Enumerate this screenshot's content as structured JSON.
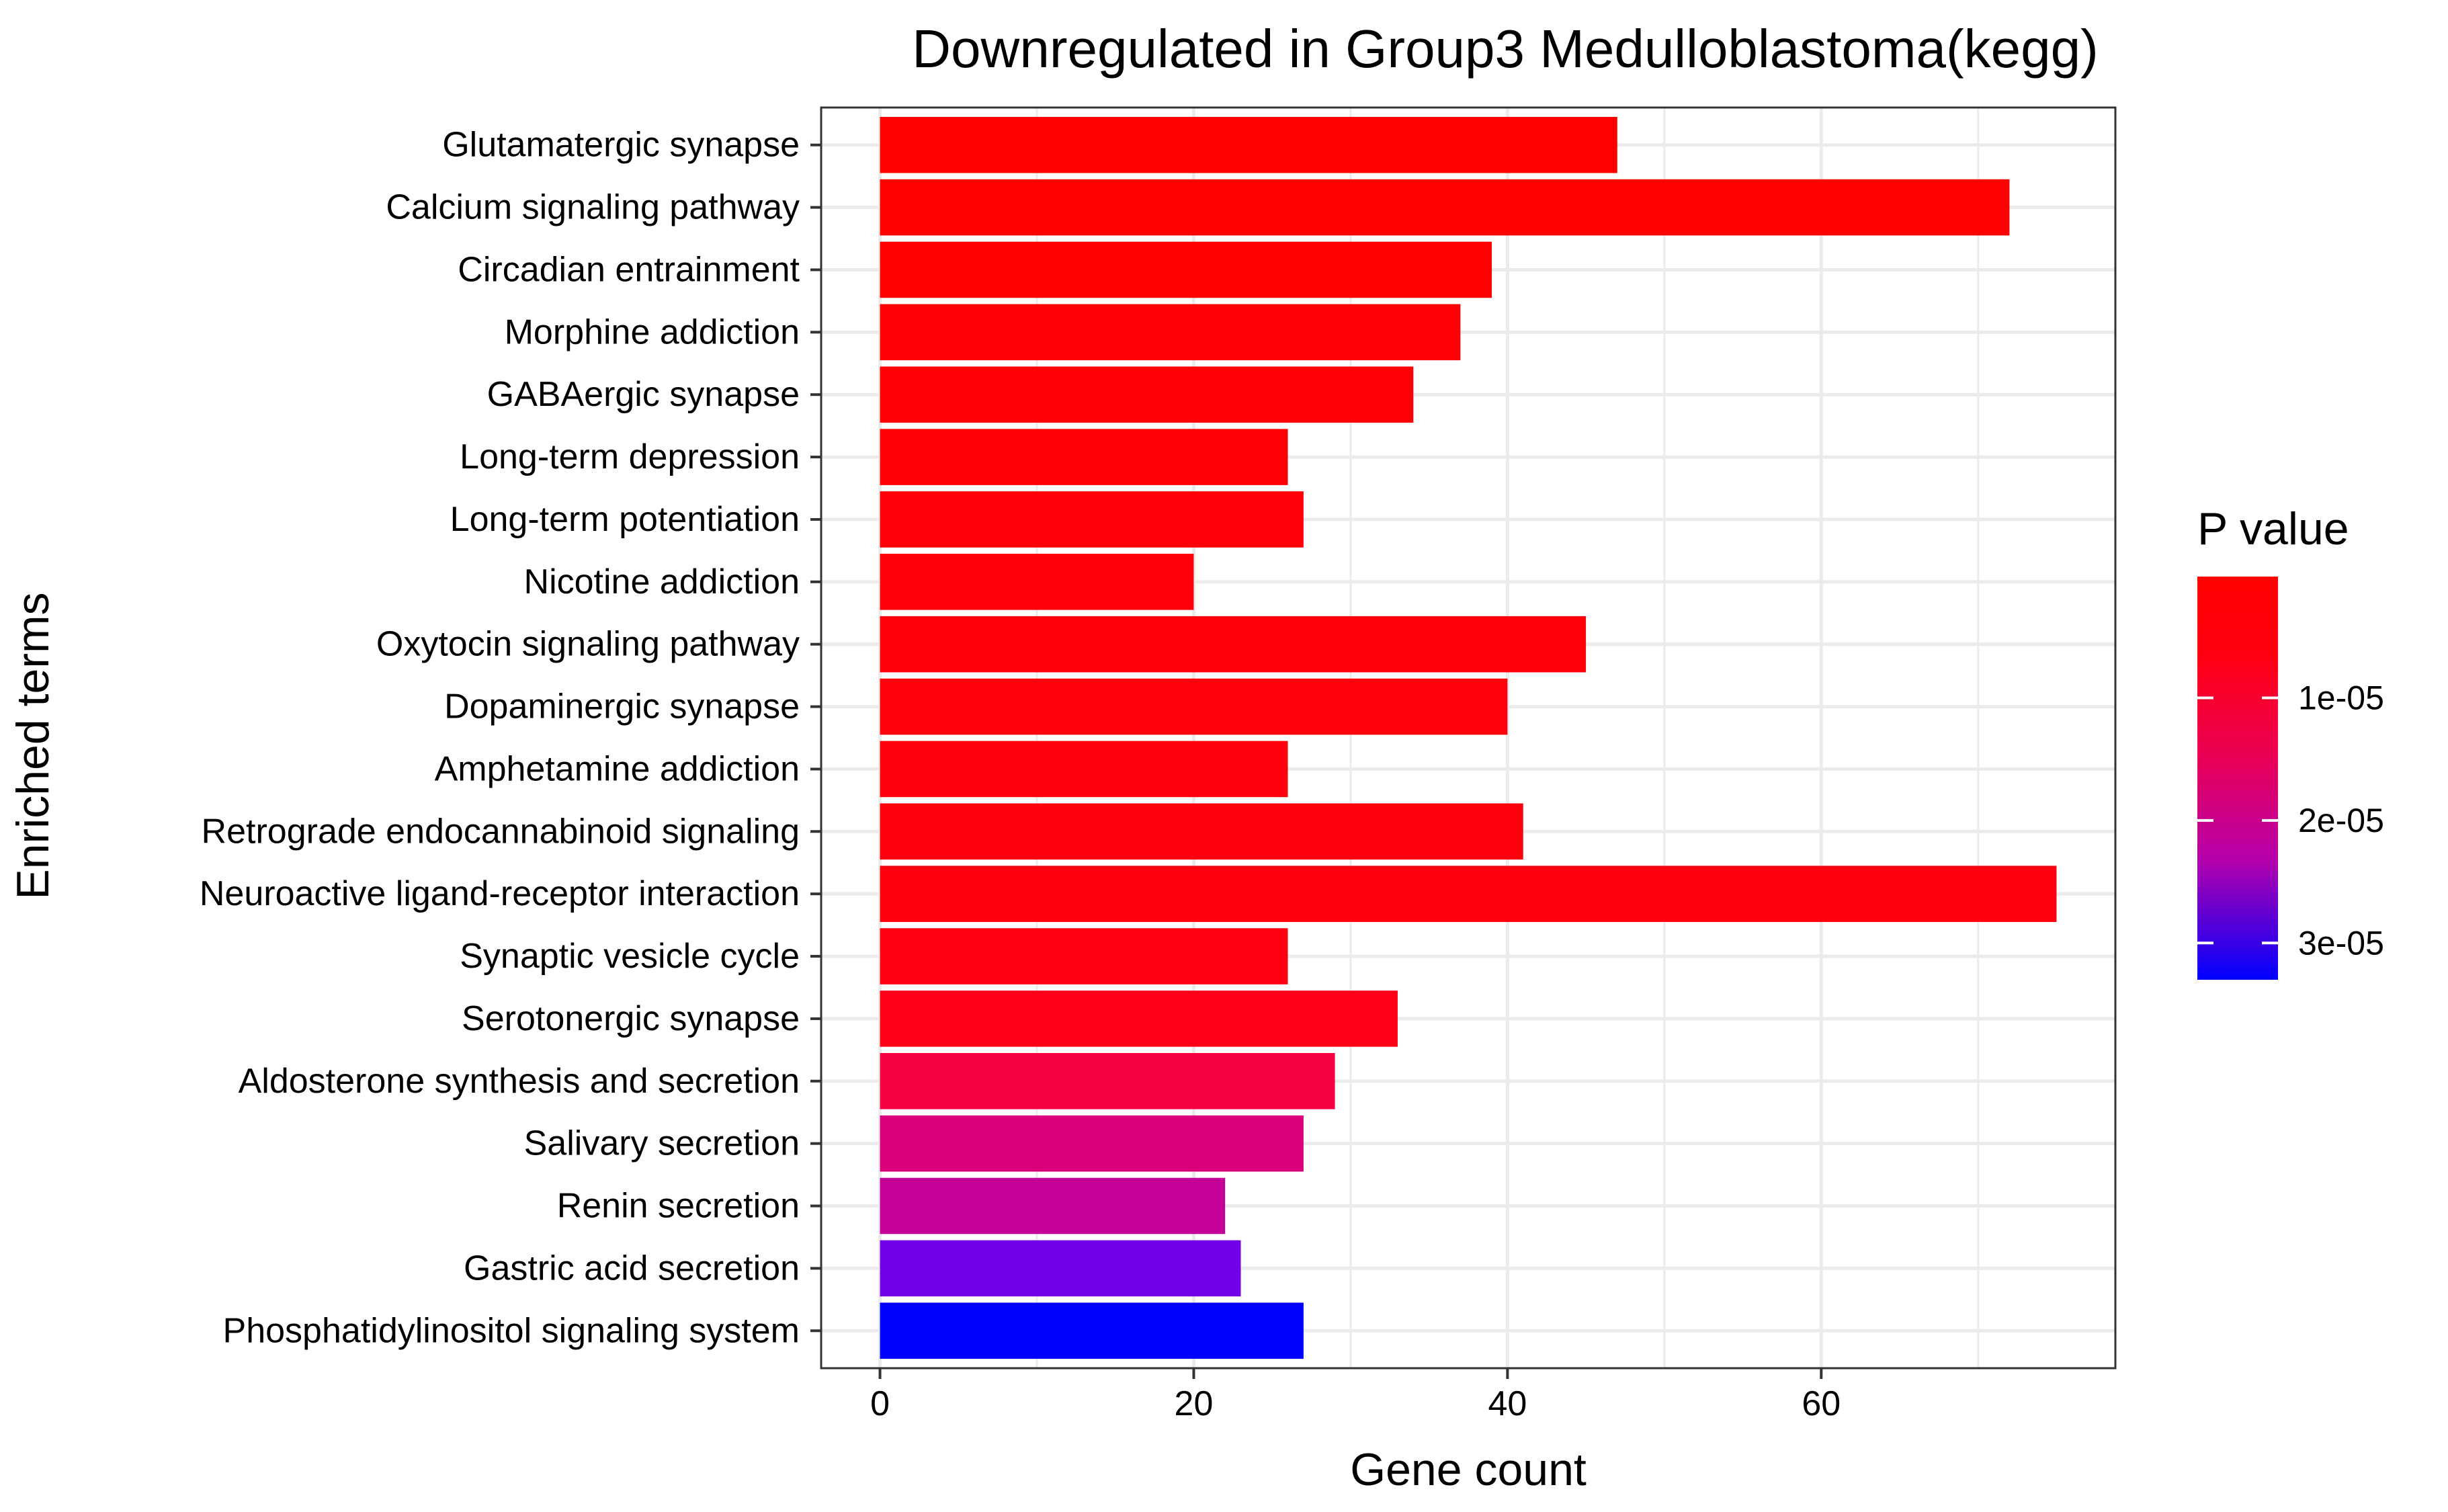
{
  "chart_data": {
    "type": "bar",
    "orientation": "horizontal",
    "title": "Downregulated in Group3 Medulloblastoma(kegg)",
    "xlabel": "Gene count",
    "ylabel": "Enriched terms",
    "xlim": [
      -3.75,
      78.75
    ],
    "xticks": [
      0,
      20,
      40,
      60
    ],
    "grid": true,
    "categories": [
      "Glutamatergic synapse",
      "Calcium signaling pathway",
      "Circadian entrainment",
      "Morphine addiction",
      "GABAergic synapse",
      "Long-term depression",
      "Long-term potentiation",
      "Nicotine addiction",
      "Oxytocin signaling pathway",
      "Dopaminergic synapse",
      "Amphetamine addiction",
      "Retrograde endocannabinoid signaling",
      "Neuroactive ligand-receptor interaction",
      "Synaptic vesicle cycle",
      "Serotonergic synapse",
      "Aldosterone synthesis and secretion",
      "Salivary secretion",
      "Renin secretion",
      "Gastric acid secretion",
      "Phosphatidylinositol signaling system"
    ],
    "values": [
      47,
      72,
      39,
      37,
      34,
      26,
      27,
      20,
      45,
      40,
      26,
      41,
      75,
      26,
      33,
      29,
      27,
      22,
      23,
      27
    ],
    "p_values": [
      3e-08,
      6e-08,
      1.2e-07,
      2e-07,
      4e-07,
      5e-07,
      6e-07,
      8e-07,
      1e-06,
      1.3e-06,
      1.5e-06,
      2e-06,
      2.5e-06,
      3e-06,
      3.5e-06,
      6e-06,
      1.5e-05,
      1.9e-05,
      2.8e-05,
      3.3e-05
    ],
    "bar_colors": [
      "#ff0000",
      "#ff0000",
      "#ff0003",
      "#ff0005",
      "#ff0006",
      "#ff0007",
      "#ff0008",
      "#ff0009",
      "#ff000a",
      "#ff000c",
      "#ff000d",
      "#ff000e",
      "#ff000f",
      "#ff0012",
      "#ff0016",
      "#f50040",
      "#d9007a",
      "#c30098",
      "#7400e8",
      "#0000ff"
    ],
    "legend": {
      "title": "P value",
      "placement": "right",
      "p_min": 1e-07,
      "p_max": 3.3e-05,
      "color_low_p": "#ff0000",
      "color_high_p": "#0000ff",
      "ticks": [
        {
          "value": 1e-05,
          "label": "1e-05"
        },
        {
          "value": 2e-05,
          "label": "2e-05"
        },
        {
          "value": 3e-05,
          "label": "3e-05"
        }
      ]
    },
    "colors": {
      "grid": "#ebebeb",
      "panel_border": "#333333",
      "tick": "#333333"
    }
  }
}
